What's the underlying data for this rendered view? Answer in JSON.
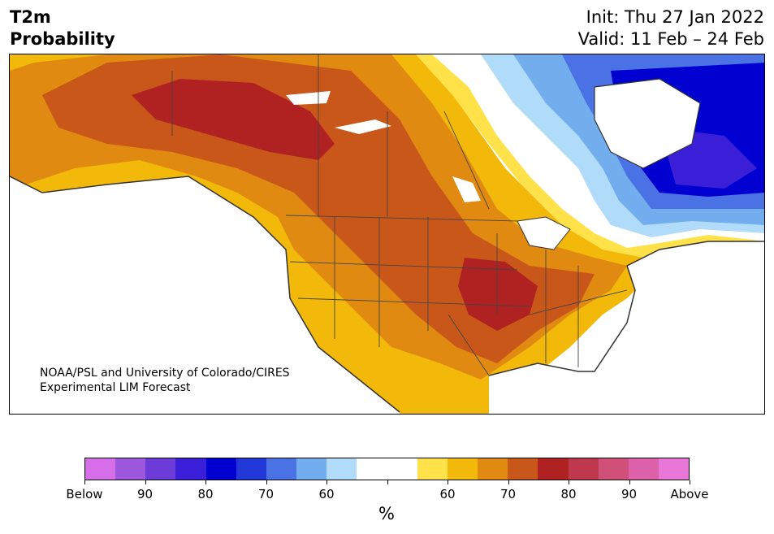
{
  "title": {
    "left_line1": "T2m",
    "left_line2": "Probability",
    "right_line1": "Init: Thu 27 Jan 2022",
    "right_line2": "Valid: 11 Feb – 24 Feb"
  },
  "credit": {
    "line1": "NOAA/PSL and University of Colorado/CIRES",
    "line2": "Experimental LIM Forecast"
  },
  "colorbar": {
    "colors": [
      "#d56ee8",
      "#9c57dc",
      "#6b3cd8",
      "#3b1ed8",
      "#0000d0",
      "#2237d8",
      "#4a72e4",
      "#72aeee",
      "#b0dcfa",
      "#ffffff",
      "#ffffff",
      "#ffe24a",
      "#f2b90a",
      "#e08a12",
      "#c9571a",
      "#b02222",
      "#c0384e",
      "#d0507a",
      "#dc60aa",
      "#e877d8"
    ],
    "labels": [
      "Below",
      "90",
      "80",
      "70",
      "60",
      "",
      "60",
      "70",
      "80",
      "90",
      "Above"
    ],
    "unit": "%"
  }
}
